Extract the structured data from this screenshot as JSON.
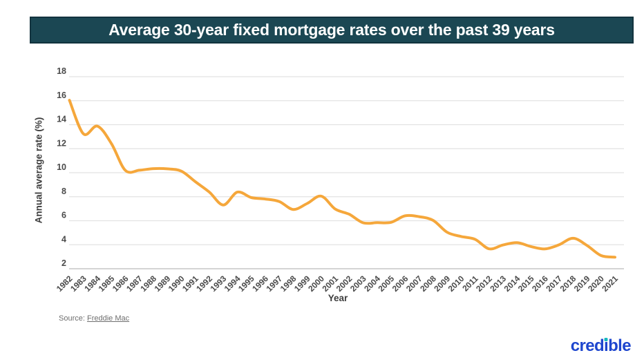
{
  "header": {
    "title": "Average 30-year fixed mortgage rates over the past 39 years",
    "background_color": "#1B4753",
    "text_color": "#FFFFFF"
  },
  "chart_data": {
    "type": "line",
    "title": "Average 30-year fixed mortgage rates over the past 39 years",
    "xlabel": "Year",
    "ylabel": "Annual average rate (%)",
    "ylim": [
      2,
      18
    ],
    "yticks": [
      18,
      16,
      14,
      12,
      10,
      8,
      6,
      4,
      2
    ],
    "grid": "horizontal",
    "legend": "none",
    "line_color": "#F5A73B",
    "categories": [
      "1982",
      "1983",
      "1984",
      "1985",
      "1986",
      "1987",
      "1988",
      "1989",
      "1990",
      "1991",
      "1992",
      "1993",
      "1994",
      "1995",
      "1996",
      "1997",
      "1998",
      "1999",
      "2000",
      "2001",
      "2002",
      "2003",
      "2004",
      "2005",
      "2006",
      "2007",
      "2008",
      "2009",
      "2010",
      "2011",
      "2012",
      "2013",
      "2014",
      "2015",
      "2016",
      "2017",
      "2018",
      "2019",
      "2020",
      "2021"
    ],
    "values": [
      16.04,
      13.24,
      13.88,
      12.43,
      10.19,
      10.21,
      10.34,
      10.32,
      10.13,
      9.25,
      8.39,
      7.31,
      8.38,
      7.93,
      7.81,
      7.6,
      6.94,
      7.44,
      8.05,
      6.97,
      6.54,
      5.83,
      5.84,
      5.87,
      6.41,
      6.34,
      6.03,
      5.04,
      4.69,
      4.45,
      3.66,
      3.98,
      4.17,
      3.85,
      3.65,
      3.99,
      4.54,
      3.94,
      3.1,
      2.96
    ]
  },
  "source": {
    "prefix": "Source: ",
    "link_text": "Freddie Mac"
  },
  "branding": {
    "logo_text": "credible",
    "logo_segments": [
      "cred",
      "ı",
      "ble"
    ],
    "logo_color": "#1E46CE",
    "dot_color": "#18B8BE"
  }
}
